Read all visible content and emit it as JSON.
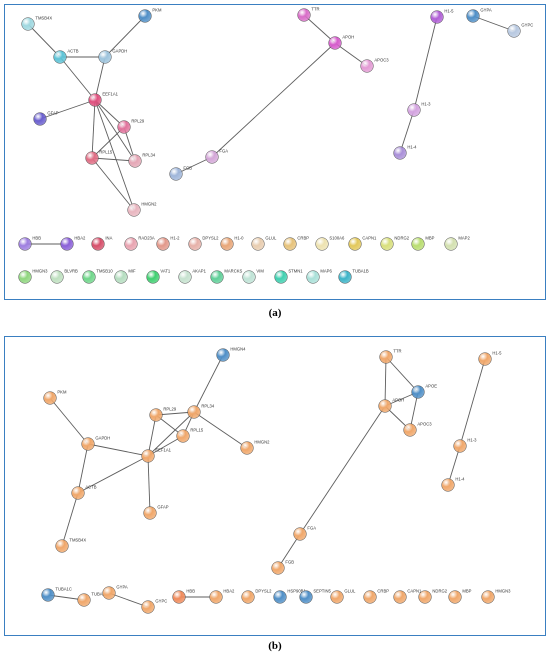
{
  "panels": [
    {
      "id": "a",
      "caption": "(a)",
      "nodes": [
        {
          "id": "TMSB4X",
          "label": "TMSB4X",
          "color": "#9fd8e0"
        },
        {
          "id": "PKM",
          "label": "PKM",
          "color": "#4f8fc7"
        },
        {
          "id": "ACTB",
          "label": "ACTB",
          "color": "#5dc3d6"
        },
        {
          "id": "GAPDH",
          "label": "GAPDH",
          "color": "#9dc4dd"
        },
        {
          "id": "EEF1A1",
          "label": "EEF1A1",
          "color": "#e0507e"
        },
        {
          "id": "GFAP",
          "label": "GFAP",
          "color": "#6a5fcf"
        },
        {
          "id": "RPL29",
          "label": "RPL29",
          "color": "#e1739c"
        },
        {
          "id": "RPL15",
          "label": "RPL15",
          "color": "#e06d84"
        },
        {
          "id": "RPL34",
          "label": "RPL34",
          "color": "#e4a6b5"
        },
        {
          "id": "HMGN2",
          "label": "HMGN2",
          "color": "#e8b5bf"
        },
        {
          "id": "TTR",
          "label": "TTR",
          "color": "#d96dc8"
        },
        {
          "id": "APOH",
          "label": "APOH",
          "color": "#d65ccc"
        },
        {
          "id": "APOC3",
          "label": "APOC3",
          "color": "#e39ad4"
        },
        {
          "id": "FGA",
          "label": "FGA",
          "color": "#d4a7d8"
        },
        {
          "id": "FGB",
          "label": "FGB",
          "color": "#9fb6da"
        },
        {
          "id": "H1-5",
          "label": "H1-5",
          "color": "#b05ed6"
        },
        {
          "id": "H1-3",
          "label": "H1-3",
          "color": "#d4a3e0"
        },
        {
          "id": "H1-4",
          "label": "H1-4",
          "color": "#a98fd8"
        },
        {
          "id": "GYPA",
          "label": "GYPA",
          "color": "#4f8fc7"
        },
        {
          "id": "GYPC",
          "label": "GYPC",
          "color": "#b7c8e0"
        },
        {
          "id": "HBB",
          "label": "HBB",
          "color": "#9e7ee0"
        },
        {
          "id": "HBA2",
          "label": "HBA2",
          "color": "#8a5fd8"
        },
        {
          "id": "INA",
          "label": "INA",
          "color": "#d64f6a"
        },
        {
          "id": "RAD23A",
          "label": "RAD23A",
          "color": "#e8a3b0"
        },
        {
          "id": "H1-2",
          "label": "H1-2",
          "color": "#e2988a"
        },
        {
          "id": "DPYSL2",
          "label": "DPYSL2",
          "color": "#e6b0a8"
        },
        {
          "id": "H1-0",
          "label": "H1-0",
          "color": "#e8a678"
        },
        {
          "id": "GLUL",
          "label": "GLUL",
          "color": "#e8cdb0"
        },
        {
          "id": "CRBP",
          "label": "CRBP",
          "color": "#e6c27a"
        },
        {
          "id": "S100A6",
          "label": "S100A6",
          "color": "#ede2b0"
        },
        {
          "id": "CAPN1",
          "label": "CAPN1",
          "color": "#e2c85a"
        },
        {
          "id": "NDRG2",
          "label": "NDRG2",
          "color": "#d8df7c"
        },
        {
          "id": "MBP",
          "label": "MBP",
          "color": "#b9dd70"
        },
        {
          "id": "MAP2",
          "label": "MAP2",
          "color": "#d3e0b0"
        },
        {
          "id": "HMGN3",
          "label": "HMGN3",
          "color": "#8fd67e"
        },
        {
          "id": "BLVRB",
          "label": "BLVRB",
          "color": "#bfe0c0"
        },
        {
          "id": "TMSB10",
          "label": "TMSB10",
          "color": "#6fd68a"
        },
        {
          "id": "MIF",
          "label": "MIF",
          "color": "#b5ddc0"
        },
        {
          "id": "VAT1",
          "label": "VAT1",
          "color": "#3fcf70"
        },
        {
          "id": "AKAP1",
          "label": "AKAP1",
          "color": "#c6e2cf"
        },
        {
          "id": "MARCKS",
          "label": "MARCKS",
          "color": "#5fcf98"
        },
        {
          "id": "VIM",
          "label": "VIM",
          "color": "#bfe3d6"
        },
        {
          "id": "STMN1",
          "label": "STMN1",
          "color": "#3fd0b0"
        },
        {
          "id": "MAP6",
          "label": "MAP6",
          "color": "#a9e0d8"
        },
        {
          "id": "TUBA1B",
          "label": "TUBA1B",
          "color": "#3cb4c8"
        }
      ],
      "edges": [
        [
          "TMSB4X",
          "ACTB"
        ],
        [
          "ACTB",
          "GAPDH"
        ],
        [
          "ACTB",
          "EEF1A1"
        ],
        [
          "PKM",
          "GAPDH"
        ],
        [
          "GAPDH",
          "EEF1A1"
        ],
        [
          "GFAP",
          "EEF1A1"
        ],
        [
          "EEF1A1",
          "RPL29"
        ],
        [
          "EEF1A1",
          "RPL15"
        ],
        [
          "EEF1A1",
          "RPL34"
        ],
        [
          "EEF1A1",
          "HMGN2"
        ],
        [
          "RPL29",
          "RPL15"
        ],
        [
          "RPL29",
          "RPL34"
        ],
        [
          "RPL15",
          "RPL34"
        ],
        [
          "RPL15",
          "HMGN2"
        ],
        [
          "TTR",
          "APOH"
        ],
        [
          "APOH",
          "APOC3"
        ],
        [
          "APOH",
          "FGA"
        ],
        [
          "FGA",
          "FGB"
        ],
        [
          "H1-5",
          "H1-3"
        ],
        [
          "H1-3",
          "H1-4"
        ],
        [
          "GYPA",
          "GYPC"
        ],
        [
          "HBB",
          "HBA2"
        ]
      ]
    },
    {
      "id": "b",
      "caption": "(b)",
      "nodes": [
        {
          "id": "HMGN4",
          "label": "HMGN4",
          "color": "#4f8fc7"
        },
        {
          "id": "PKM",
          "label": "PKM",
          "color": "#f0a76a"
        },
        {
          "id": "RPL29",
          "label": "RPL29",
          "color": "#f0a76a"
        },
        {
          "id": "RPL34",
          "label": "RPL34",
          "color": "#f0a76a"
        },
        {
          "id": "GAPDH",
          "label": "GAPDH",
          "color": "#f0a76a"
        },
        {
          "id": "RPL15",
          "label": "RPL15",
          "color": "#f0a76a"
        },
        {
          "id": "HMGN2",
          "label": "HMGN2",
          "color": "#f0a76a"
        },
        {
          "id": "EEF1A1",
          "label": "EEF1A1",
          "color": "#f0a76a"
        },
        {
          "id": "ACTB",
          "label": "ACTB",
          "color": "#f0a76a"
        },
        {
          "id": "GFAP",
          "label": "GFAP",
          "color": "#f0a76a"
        },
        {
          "id": "TMSB4X",
          "label": "TMSB4X",
          "color": "#f0a76a"
        },
        {
          "id": "TTR",
          "label": "TTR",
          "color": "#f0a76a"
        },
        {
          "id": "APOE",
          "label": "APOE",
          "color": "#4f8fc7"
        },
        {
          "id": "APOH",
          "label": "APOH",
          "color": "#f0a76a"
        },
        {
          "id": "APOC3",
          "label": "APOC3",
          "color": "#f0a76a"
        },
        {
          "id": "FGA",
          "label": "FGA",
          "color": "#f0a76a"
        },
        {
          "id": "FGB",
          "label": "FGB",
          "color": "#f0a76a"
        },
        {
          "id": "H1-5",
          "label": "H1-5",
          "color": "#f0a76a"
        },
        {
          "id": "H1-3",
          "label": "H1-3",
          "color": "#f0a76a"
        },
        {
          "id": "H1-4",
          "label": "H1-4",
          "color": "#f0a76a"
        },
        {
          "id": "TUBA1C",
          "label": "TUBA1C",
          "color": "#4f8fc7"
        },
        {
          "id": "TUBA1B",
          "label": "TUBA1B",
          "color": "#f0a76a"
        },
        {
          "id": "GYPA",
          "label": "GYPA",
          "color": "#f0a76a"
        },
        {
          "id": "GYPC",
          "label": "GYPC",
          "color": "#f0a76a"
        },
        {
          "id": "HBB",
          "label": "HBB",
          "color": "#f08a5a"
        },
        {
          "id": "HBA2",
          "label": "HBA2",
          "color": "#f0a76a"
        },
        {
          "id": "DPYSL2",
          "label": "DPYSL2",
          "color": "#f0a76a"
        },
        {
          "id": "HSP90B1",
          "label": "HSP90B1",
          "color": "#4f8fc7"
        },
        {
          "id": "SEPTIN5",
          "label": "SEPTIN5",
          "color": "#4f8fc7"
        },
        {
          "id": "GLUL",
          "label": "GLUL",
          "color": "#f0a76a"
        },
        {
          "id": "CRBP",
          "label": "CRBP",
          "color": "#f0a76a"
        },
        {
          "id": "CAPN1",
          "label": "CAPN1",
          "color": "#f0a76a"
        },
        {
          "id": "NDRG2",
          "label": "NDRG2",
          "color": "#f0a76a"
        },
        {
          "id": "MBP",
          "label": "MBP",
          "color": "#f0a76a"
        },
        {
          "id": "HMGN3",
          "label": "HMGN3",
          "color": "#f0a76a"
        }
      ],
      "edges": [
        [
          "HMGN4",
          "RPL34"
        ],
        [
          "PKM",
          "GAPDH"
        ],
        [
          "GAPDH",
          "EEF1A1"
        ],
        [
          "GAPDH",
          "ACTB"
        ],
        [
          "RPL29",
          "RPL34"
        ],
        [
          "RPL29",
          "RPL15"
        ],
        [
          "RPL29",
          "EEF1A1"
        ],
        [
          "RPL34",
          "RPL15"
        ],
        [
          "RPL34",
          "HMGN2"
        ],
        [
          "RPL34",
          "EEF1A1"
        ],
        [
          "RPL15",
          "EEF1A1"
        ],
        [
          "EEF1A1",
          "ACTB"
        ],
        [
          "EEF1A1",
          "GFAP"
        ],
        [
          "ACTB",
          "TMSB4X"
        ],
        [
          "TTR",
          "APOE"
        ],
        [
          "TTR",
          "APOH"
        ],
        [
          "APOE",
          "APOH"
        ],
        [
          "APOE",
          "APOC3"
        ],
        [
          "APOH",
          "APOC3"
        ],
        [
          "APOH",
          "FGA"
        ],
        [
          "FGA",
          "FGB"
        ],
        [
          "H1-5",
          "H1-3"
        ],
        [
          "H1-3",
          "H1-4"
        ],
        [
          "TUBA1C",
          "TUBA1B"
        ],
        [
          "GYPA",
          "GYPC"
        ],
        [
          "HBB",
          "HBA2"
        ]
      ]
    }
  ]
}
